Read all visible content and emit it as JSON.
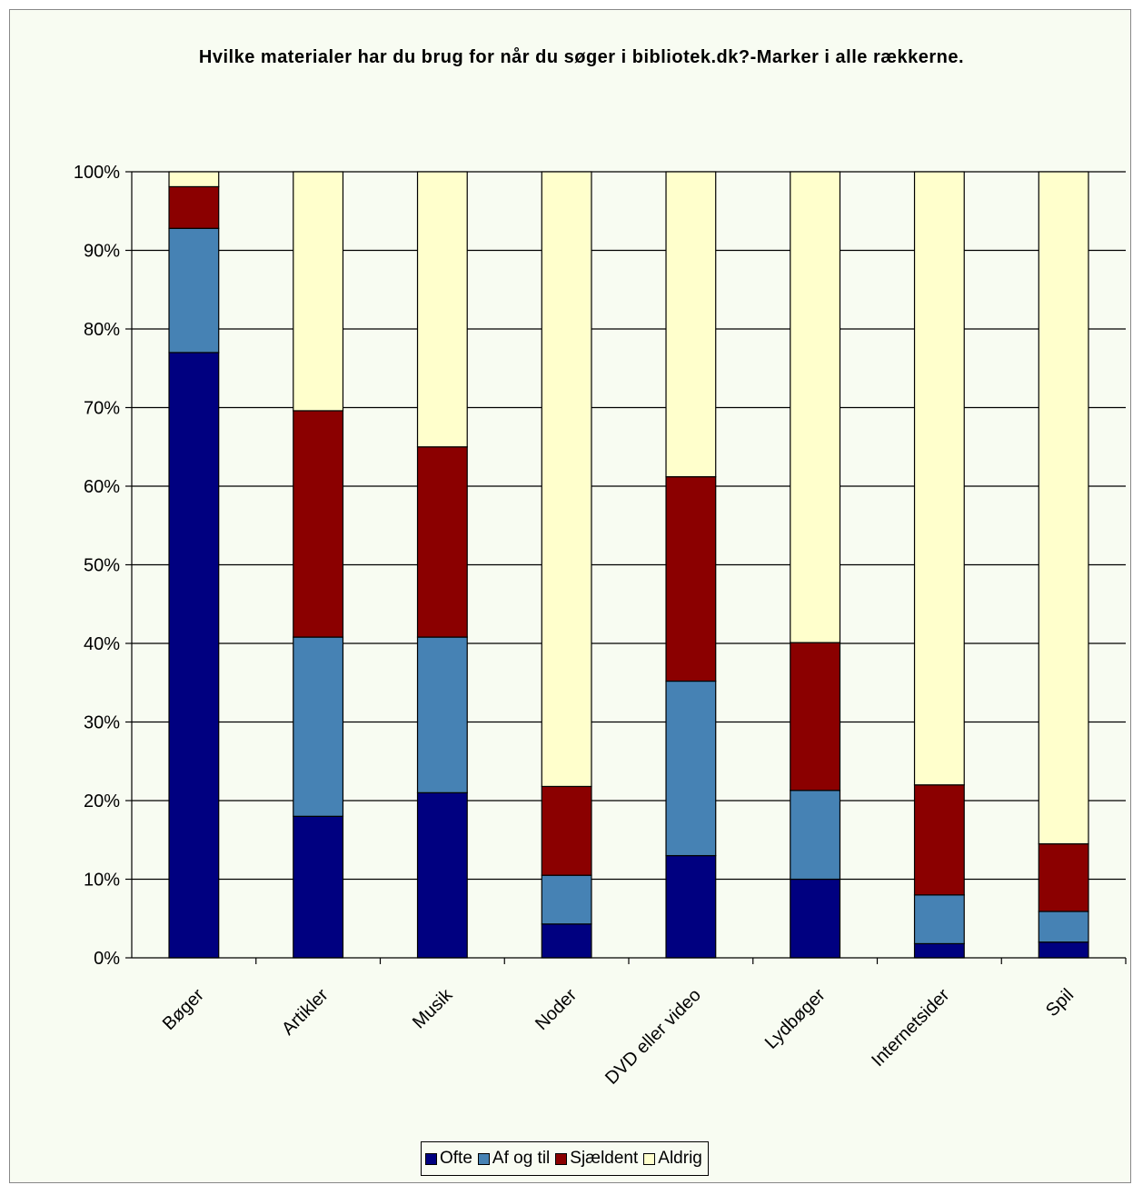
{
  "chart_data": {
    "type": "bar",
    "stacked": true,
    "percent_stacked": true,
    "title": "Hvilke materialer har du brug for når du søger i bibliotek.dk?-Marker i alle rækkerne.",
    "xlabel": "",
    "ylabel": "",
    "ylim": [
      0,
      100
    ],
    "y_ticks": [
      "0%",
      "10%",
      "20%",
      "30%",
      "40%",
      "50%",
      "60%",
      "70%",
      "80%",
      "90%",
      "100%"
    ],
    "grid": true,
    "legend_position": "bottom",
    "categories": [
      "Bøger",
      "Artikler",
      "Musik",
      "Noder",
      "DVD eller video",
      "Lydbøger",
      "Internetsider",
      "Spil"
    ],
    "series": [
      {
        "name": "Ofte",
        "color": "#000080",
        "values": [
          77,
          18,
          21,
          4.3,
          13,
          10,
          1.8,
          2
        ]
      },
      {
        "name": "Af og til",
        "color": "#4682b4",
        "values": [
          15.8,
          22.8,
          19.8,
          6.2,
          22.2,
          11.3,
          6.2,
          3.9
        ]
      },
      {
        "name": "Sjældent",
        "color": "#8b0000",
        "values": [
          5.3,
          28.8,
          24.2,
          11.3,
          26,
          18.8,
          14,
          8.6
        ]
      },
      {
        "name": "Aldrig",
        "color": "#ffffcc",
        "values": [
          1.9,
          30.4,
          35,
          78.2,
          38.8,
          59.9,
          78,
          85.5
        ]
      }
    ]
  }
}
